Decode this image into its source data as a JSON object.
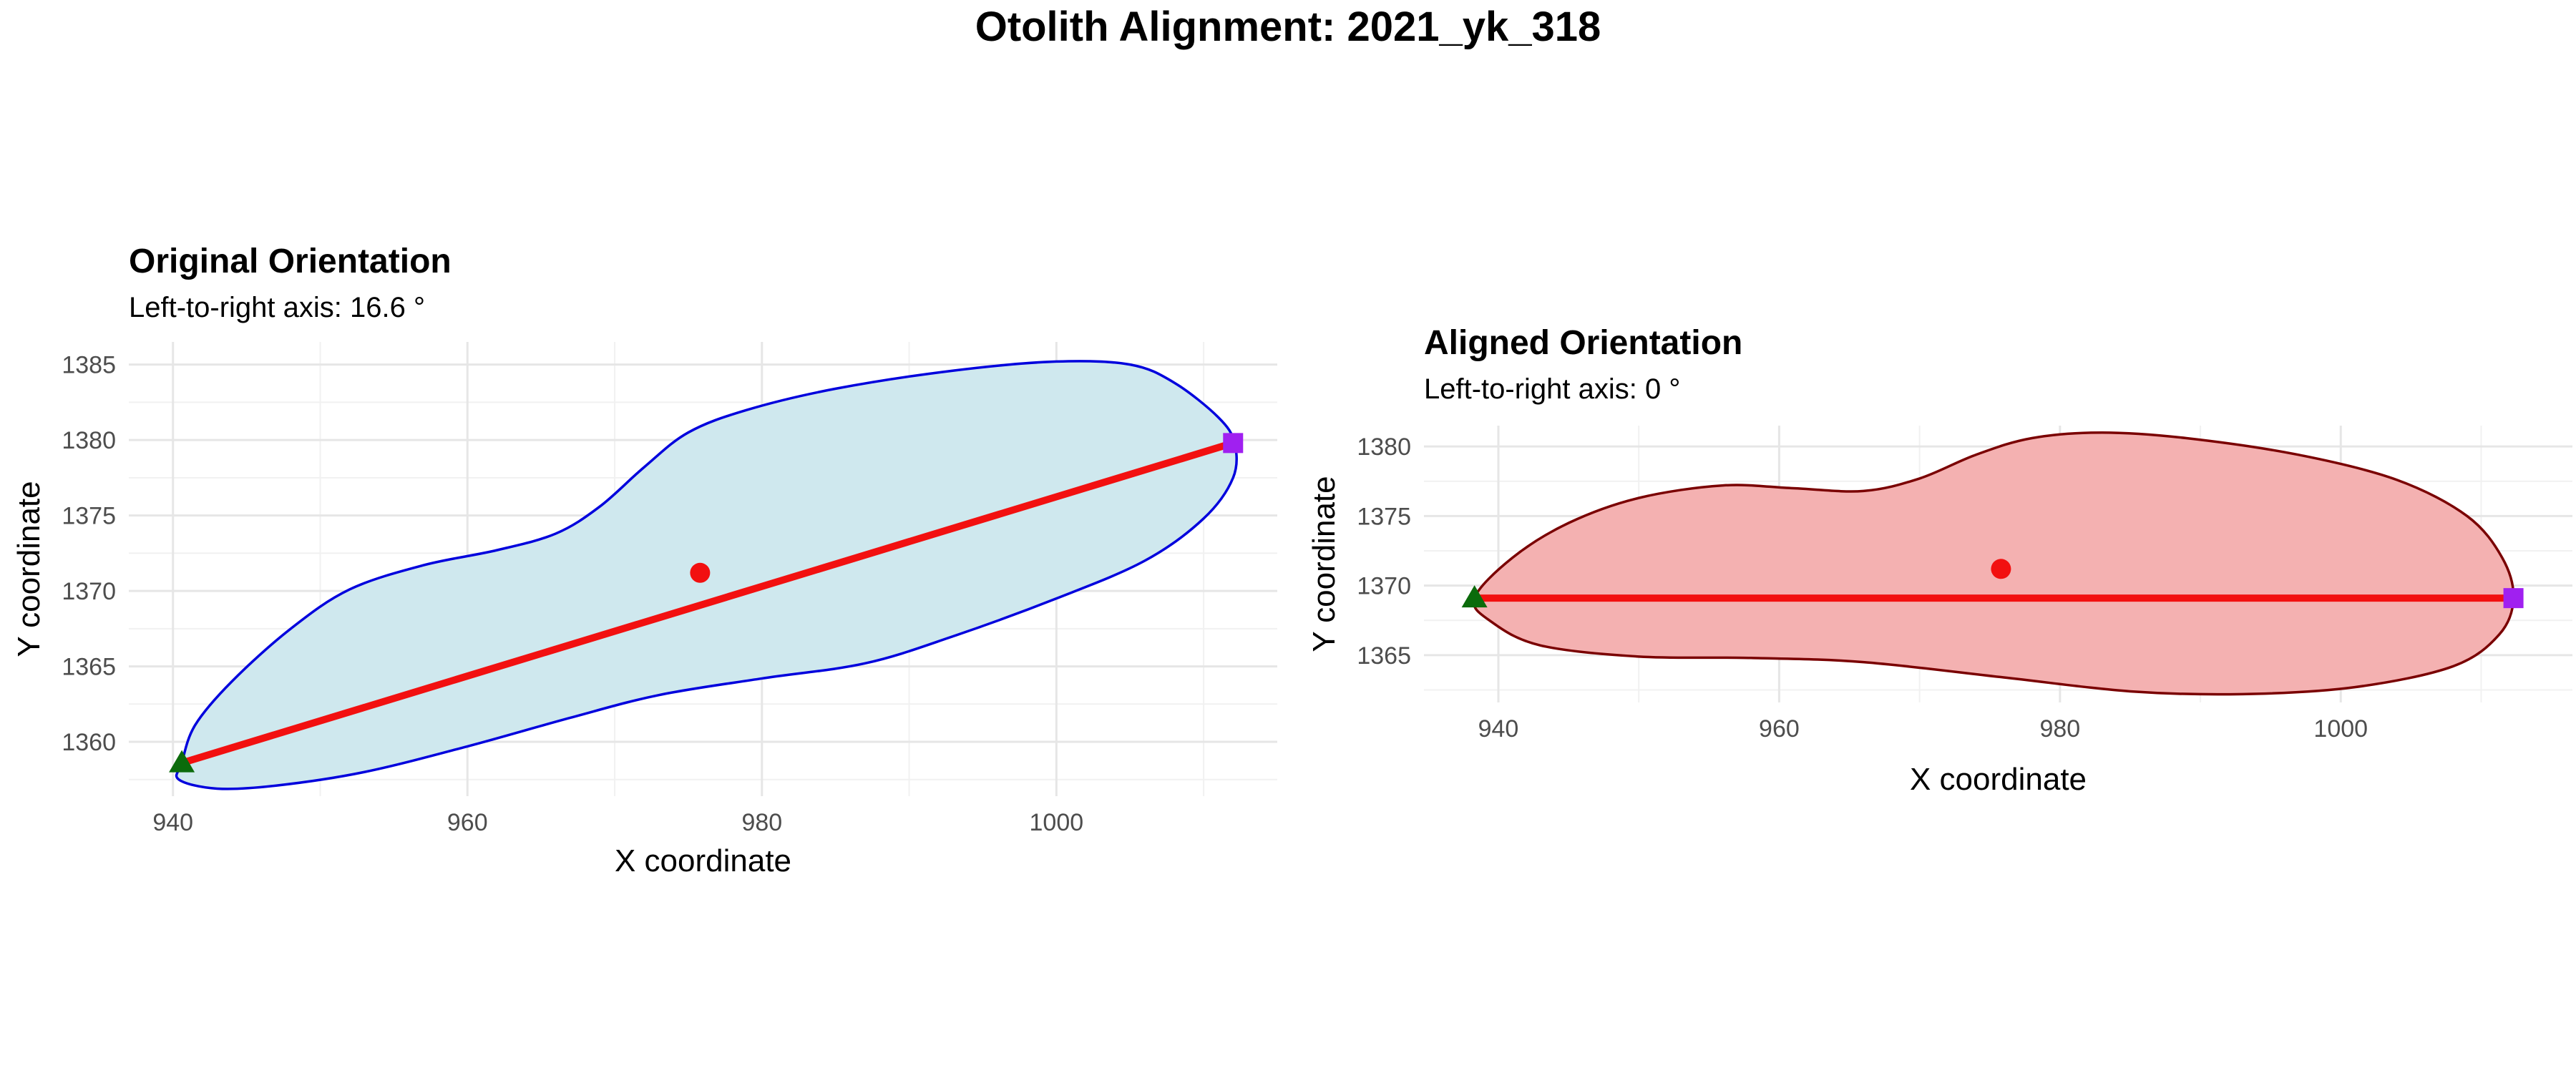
{
  "figure": {
    "title": "Otolith Alignment: 2021_yk_318"
  },
  "chart_data": [
    {
      "type": "scatter",
      "title": "Original Orientation",
      "subtitle": "Left-to-right axis: 16.6 °",
      "xlabel": "X coordinate",
      "ylabel": "Y coordinate",
      "xlim": [
        937,
        1015
      ],
      "ylim": [
        1356.4,
        1386.5
      ],
      "xticks": [
        940,
        960,
        980,
        1000
      ],
      "yticks": [
        1360,
        1365,
        1370,
        1375,
        1380,
        1385
      ],
      "grid": true,
      "outline_fill": "#cfe8ee",
      "outline_stroke": "#0000dd",
      "outline": [
        [
          940.6,
          1358.6
        ],
        [
          941.5,
          1361.1
        ],
        [
          944,
          1364
        ],
        [
          948,
          1367.5
        ],
        [
          952,
          1370.1
        ],
        [
          957,
          1371.7
        ],
        [
          962,
          1372.7
        ],
        [
          966,
          1373.8
        ],
        [
          969,
          1375.6
        ],
        [
          972,
          1378.2
        ],
        [
          975,
          1380.5
        ],
        [
          979,
          1382.0
        ],
        [
          985,
          1383.4
        ],
        [
          993,
          1384.6
        ],
        [
          1000,
          1385.2
        ],
        [
          1005,
          1385.0
        ],
        [
          1008,
          1383.8
        ],
        [
          1011,
          1381.5
        ],
        [
          1012.1,
          1379.8
        ],
        [
          1012,
          1377.5
        ],
        [
          1010,
          1374.8
        ],
        [
          1006,
          1372.0
        ],
        [
          1000,
          1369.5
        ],
        [
          993,
          1367.0
        ],
        [
          987,
          1365.2
        ],
        [
          980,
          1364.2
        ],
        [
          973,
          1363.1
        ],
        [
          967,
          1361.6
        ],
        [
          960,
          1359.7
        ],
        [
          953,
          1358.0
        ],
        [
          947,
          1357.1
        ],
        [
          943,
          1356.9
        ],
        [
          940.4,
          1357.5
        ],
        [
          940.6,
          1358.6
        ]
      ],
      "axis_line": {
        "color": "#f21010",
        "start": [
          940.6,
          1358.6
        ],
        "end": [
          1012.0,
          1379.8
        ]
      },
      "centroid": {
        "color": "#f21010",
        "x": 975.8,
        "y": 1371.2
      },
      "left_point": {
        "color": "#0b6b0b",
        "shape": "triangle",
        "x": 940.6,
        "y": 1358.6
      },
      "right_point": {
        "color": "#a020f0",
        "shape": "square",
        "x": 1012.0,
        "y": 1379.8
      }
    },
    {
      "type": "scatter",
      "title": "Aligned Orientation",
      "subtitle": "Left-to-right axis: 0 °",
      "xlabel": "X coordinate",
      "ylabel": "Y coordinate",
      "xlim": [
        934.7,
        1016.5
      ],
      "ylim": [
        1361.6,
        1381.5
      ],
      "xticks": [
        940,
        960,
        980,
        1000
      ],
      "yticks": [
        1365,
        1370,
        1375,
        1380
      ],
      "grid": true,
      "outline_fill": "#f4b1b1",
      "outline_stroke": "#7a0000",
      "outline": [
        [
          938.3,
          1369.1
        ],
        [
          941,
          1372.0
        ],
        [
          945,
          1374.5
        ],
        [
          950,
          1376.3
        ],
        [
          956,
          1377.2
        ],
        [
          961,
          1377.0
        ],
        [
          966,
          1376.8
        ],
        [
          970,
          1377.7
        ],
        [
          974,
          1379.4
        ],
        [
          978,
          1380.6
        ],
        [
          983,
          1381.0
        ],
        [
          989,
          1380.6
        ],
        [
          997,
          1379.4
        ],
        [
          1004,
          1377.6
        ],
        [
          1009,
          1375.0
        ],
        [
          1011.5,
          1372.0
        ],
        [
          1012.3,
          1369.1
        ],
        [
          1011.3,
          1366.5
        ],
        [
          1008,
          1364.2
        ],
        [
          1001,
          1362.7
        ],
        [
          993,
          1362.2
        ],
        [
          985,
          1362.4
        ],
        [
          976,
          1363.4
        ],
        [
          966,
          1364.5
        ],
        [
          958,
          1364.8
        ],
        [
          950,
          1364.9
        ],
        [
          943,
          1365.7
        ],
        [
          939.5,
          1367.4
        ],
        [
          938.3,
          1369.1
        ]
      ],
      "axis_line": {
        "color": "#f21010",
        "start": [
          938.3,
          1369.1
        ],
        "end": [
          1012.3,
          1369.1
        ]
      },
      "centroid": {
        "color": "#f21010",
        "x": 975.8,
        "y": 1371.2
      },
      "left_point": {
        "color": "#0b6b0b",
        "shape": "triangle",
        "x": 938.3,
        "y": 1369.1
      },
      "right_point": {
        "color": "#a020f0",
        "shape": "square",
        "x": 1012.3,
        "y": 1369.1
      }
    }
  ]
}
